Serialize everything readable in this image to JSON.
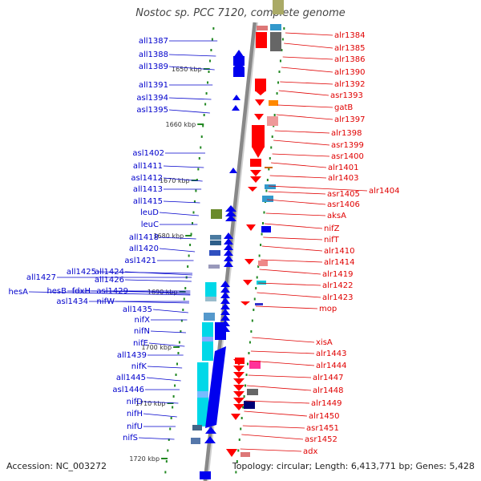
{
  "title": "Nostoc sp. PCC 7120, complete genome",
  "footer": {
    "accession": "Accession: NC_003272",
    "info": "Topology: circular; Length: 6,413,771 bp; Genes: 5,428"
  },
  "colors": {
    "forward_label": "#e00000",
    "reverse_label": "#0000cc",
    "forward_gene": "#ff0000",
    "reverse_gene": "#0000ee",
    "axis": "#999999",
    "tick": "#228822"
  },
  "scale_labels": [
    "1650 kbp",
    "1660 kbp",
    "1670 kbp",
    "1680 kbp",
    "1690 kbp",
    "1700 kbp",
    "1710 kbp",
    "1720 kbp"
  ],
  "left_labels": [
    "all1387",
    "all1388",
    "all1389",
    "all1391",
    "asl1394",
    "asl1395",
    "asl1402",
    "all1411",
    "asl1412",
    "all1413",
    "all1415",
    "leuD",
    "leuC",
    "all1418",
    "all1420",
    "asl1421",
    "all1425",
    "all1424",
    "all1427",
    "all1426",
    "hesA",
    "hesB",
    "fdxH",
    "asl1429",
    "asl1434",
    "nifW",
    "all1435",
    "nifX",
    "nifN",
    "nifE",
    "all1439",
    "nifK",
    "all1445",
    "asl1446",
    "nifD",
    "nifH",
    "nifU",
    "nifS"
  ],
  "right_labels": [
    "alr1384",
    "alr1385",
    "alr1386",
    "alr1390",
    "alr1392",
    "asr1393",
    "gatB",
    "alr1397",
    "alr1398",
    "asr1399",
    "asr1400",
    "alr1401",
    "alr1403",
    "alr1404",
    "asr1405",
    "asr1406",
    "aksA",
    "nifZ",
    "nifT",
    "alr1410",
    "alr1414",
    "alr1419",
    "alr1422",
    "alr1423",
    "mop",
    "xisA",
    "alr1443",
    "alr1444",
    "alr1447",
    "alr1448",
    "alr1449",
    "alr1450",
    "asr1451",
    "asr1452",
    "adx"
  ]
}
